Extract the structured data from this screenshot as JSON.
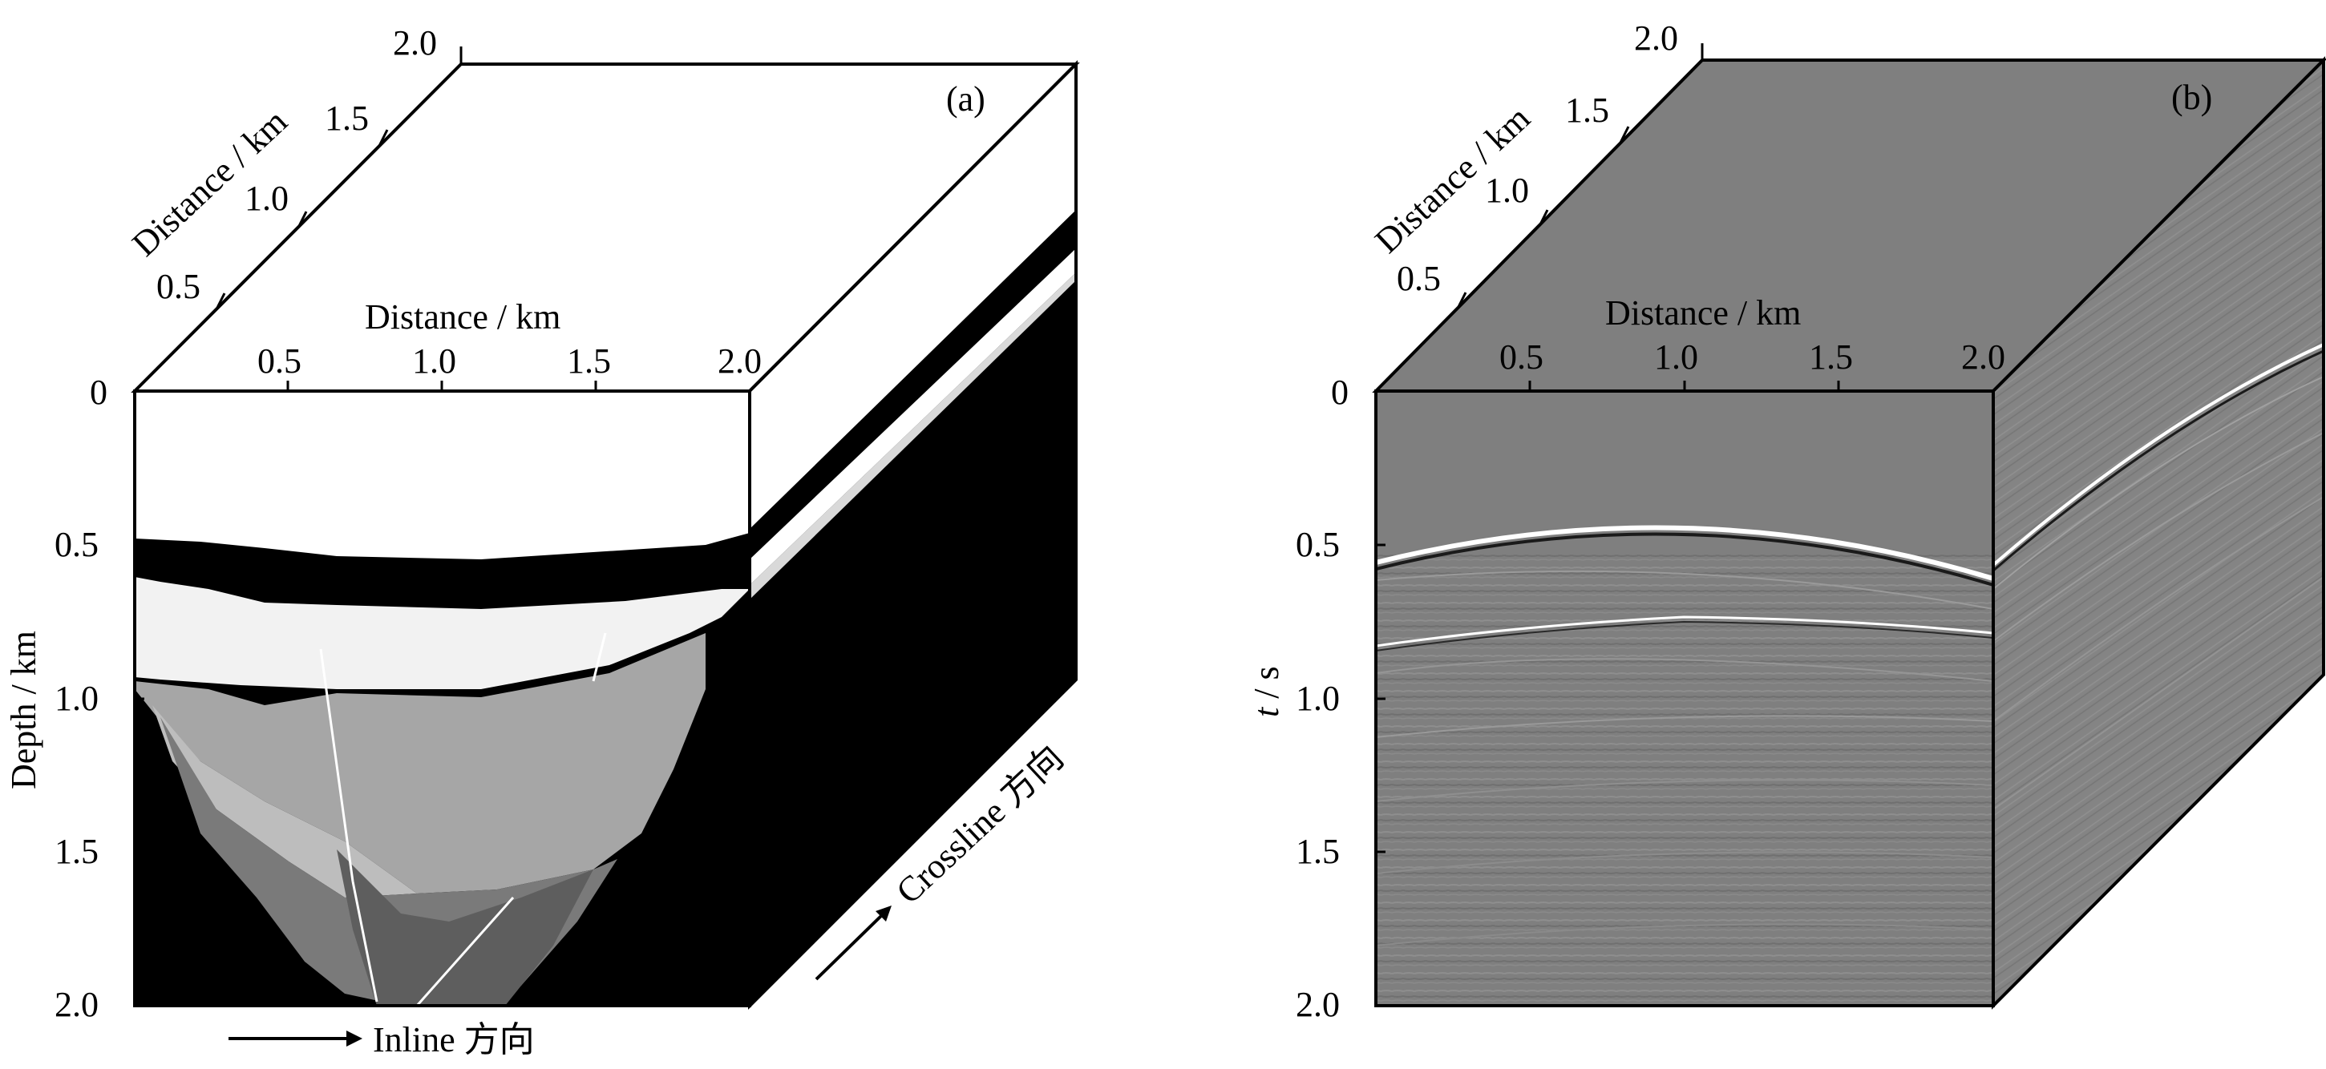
{
  "panel_a": {
    "tag": "(a)",
    "inline_ticks": [
      "0.5",
      "1.0",
      "1.5",
      "2.0"
    ],
    "depth_ticks": [
      "0",
      "0.5",
      "1.0",
      "1.5",
      "2.0"
    ],
    "crossline_ticks": [
      "0.5",
      "1.0",
      "1.5",
      "2.0"
    ],
    "top_axis_label": "Distance / km",
    "diag_axis_label": "Distance / km",
    "left_axis_label": "Depth / km",
    "inline_direction": "Inline 方向",
    "crossline_direction": "Crossline 方向"
  },
  "panel_b": {
    "tag": "(b)",
    "inline_ticks": [
      "0.5",
      "1.0",
      "1.5",
      "2.0"
    ],
    "time_ticks": [
      "0",
      "0.5",
      "1.0",
      "1.5",
      "2.0"
    ],
    "crossline_ticks": [
      "0.5",
      "1.0",
      "1.5",
      "2.0"
    ],
    "top_axis_label": "Distance / km",
    "diag_axis_label": "Distance / km",
    "left_axis_label_italic": "t",
    "left_axis_label_rest": " / s"
  },
  "colors": {
    "background": "#ffffff",
    "model_black": "#000000",
    "model_white": "#ffffff",
    "model_light": "#f2f2f2",
    "model_mid": "#a6a6a6",
    "model_midlight": "#bdbdbd",
    "model_dark": "#7a7a7a",
    "model_darker": "#5e5e5e",
    "seismic_gray": "#7f7f7f",
    "seismic_side": "#878787"
  }
}
